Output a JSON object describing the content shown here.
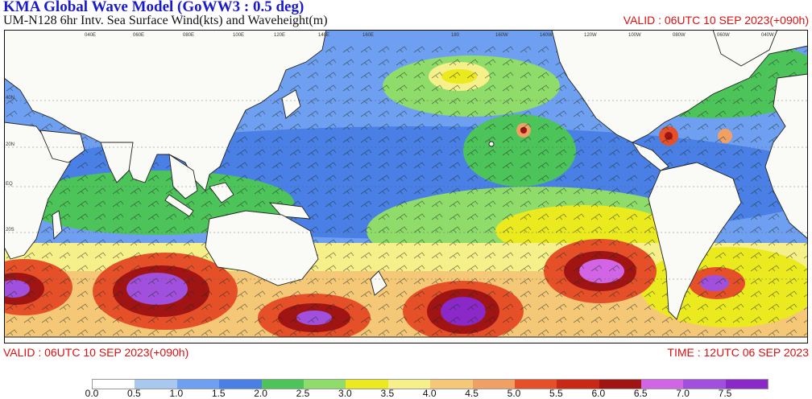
{
  "header": {
    "title": "KMA  Global Wave Model (GoWW3 : 0.5 deg)",
    "subtitle": "UM-N128  6hr Intv. Sea Surface Wind(kts) and Waveheight(m)",
    "valid_top": "VALID : 06UTC 10 SEP 2023(+090h)"
  },
  "footer": {
    "valid": "VALID : 06UTC 10 SEP 2023(+090h)",
    "time": "TIME : 12UTC 06 SEP 2023"
  },
  "map": {
    "lon_labels": [
      "040E",
      "060E",
      "080E",
      "100E",
      "120E",
      "140E",
      "160E",
      "180",
      "160W",
      "140W",
      "120W",
      "100W",
      "080W",
      "060W",
      "040W"
    ],
    "lat_labels": [
      "40N",
      "20N",
      "EQ",
      "20S",
      "40S"
    ],
    "colors": {
      "land": "#fafaf6",
      "coast": "#222222"
    }
  },
  "legend": {
    "labels": [
      "0.0",
      "0.5",
      "1.0",
      "1.5",
      "2.0",
      "2.5",
      "3.0",
      "3.5",
      "4.0",
      "4.5",
      "5.0",
      "5.5",
      "6.0",
      "6.5",
      "7.0",
      "7.5"
    ],
    "colors": [
      "#ffffff",
      "#a9c8f0",
      "#6f9ff0",
      "#4a80e6",
      "#4cc45a",
      "#8fdc6a",
      "#eaea1e",
      "#f5f08a",
      "#f5c878",
      "#f0a064",
      "#e65028",
      "#c82814",
      "#a01414",
      "#d264e6",
      "#a050dc",
      "#8a28c8"
    ]
  }
}
